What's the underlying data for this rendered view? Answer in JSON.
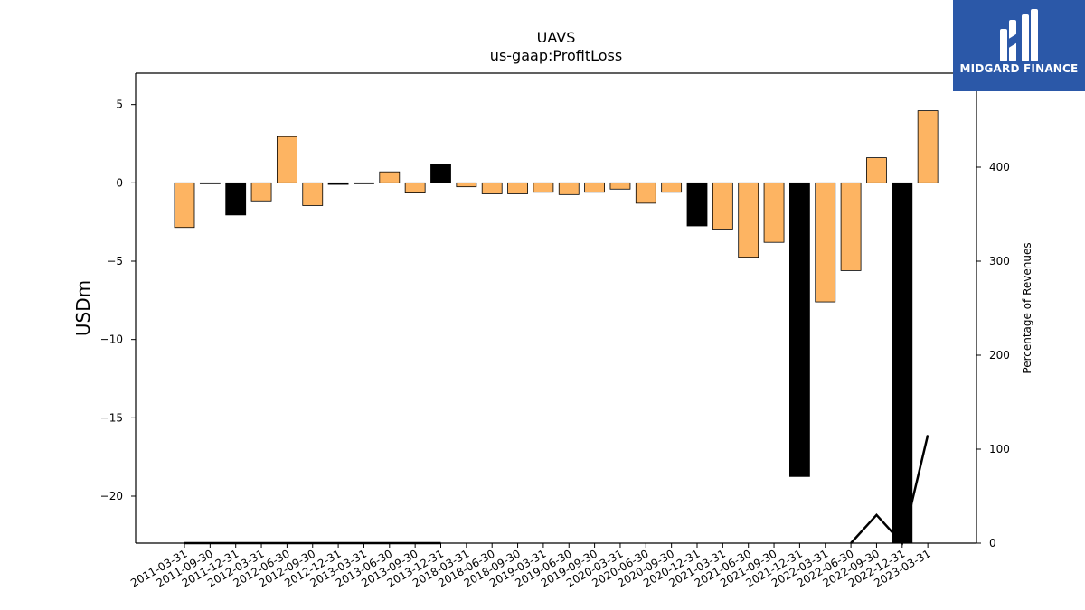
{
  "logo": {
    "text": "MIDGARD FINANCE",
    "color": "#2b58a8"
  },
  "chart_data": {
    "type": "bar",
    "title": "UAVS",
    "subtitle": "us-gaap:ProfitLoss",
    "ylabel": "USDm",
    "ylabel_right": "Percentage of Revenues",
    "ylim": [
      -23,
      7
    ],
    "ylim_right": [
      0,
      500
    ],
    "yticks": [
      5,
      0,
      -5,
      -10,
      -15,
      -20
    ],
    "yticks_right": [
      0,
      100,
      200,
      300,
      400
    ],
    "grid": false,
    "categories": [
      "2011-03-31",
      "2011-09-30",
      "2011-12-31",
      "2012-03-31",
      "2012-06-30",
      "2012-09-30",
      "2012-12-31",
      "2013-03-31",
      "2013-06-30",
      "2013-09-30",
      "2013-12-31",
      "2018-03-31",
      "2018-06-30",
      "2018-09-30",
      "2019-03-31",
      "2019-06-30",
      "2019-09-30",
      "2020-03-31",
      "2020-06-30",
      "2020-09-30",
      "2020-12-31",
      "2021-03-31",
      "2021-06-30",
      "2021-09-30",
      "2021-12-31",
      "2022-03-31",
      "2022-06-30",
      "2022-09-30",
      "2022-12-31",
      "2023-03-31"
    ],
    "series": [
      {
        "type": "bar",
        "values": [
          -2.85,
          -0.05,
          -2.05,
          -1.15,
          2.95,
          -1.45,
          -0.1,
          -0.05,
          0.7,
          -0.65,
          1.15,
          -0.25,
          -0.7,
          -0.7,
          -0.6,
          -0.75,
          -0.6,
          -0.4,
          -1.3,
          -0.6,
          -2.75,
          -2.95,
          -4.75,
          -3.8,
          -18.75,
          -7.6,
          -5.6,
          1.6,
          -23,
          4.6
        ],
        "highlight": [
          false,
          false,
          true,
          false,
          false,
          false,
          true,
          false,
          false,
          false,
          true,
          false,
          false,
          false,
          false,
          false,
          false,
          false,
          false,
          false,
          true,
          false,
          false,
          false,
          true,
          false,
          false,
          false,
          true,
          false
        ],
        "color": "#fdb462",
        "highlight_color": "#000000"
      },
      {
        "type": "line",
        "axis": "right",
        "values": [
          0,
          0,
          0,
          0,
          0,
          0,
          0,
          0,
          0,
          0,
          0,
          null,
          null,
          null,
          null,
          null,
          null,
          null,
          null,
          null,
          null,
          null,
          null,
          null,
          null,
          null,
          0,
          30,
          0,
          115
        ],
        "color": "#000000"
      }
    ]
  }
}
